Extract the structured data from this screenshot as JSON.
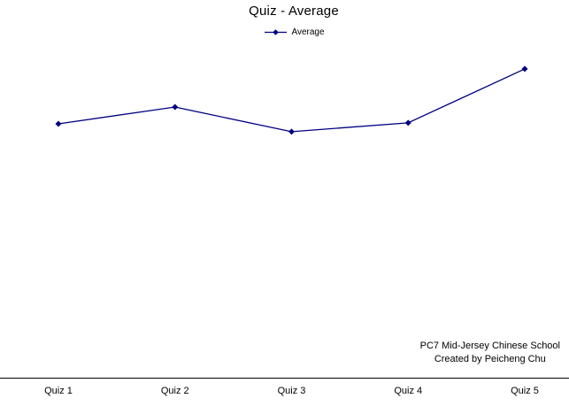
{
  "title": "Quiz - Average",
  "legend": {
    "label": "Average"
  },
  "credit": {
    "line1": "PC7 Mid-Jersey Chinese School",
    "line2": "Created by Peicheng Chu"
  },
  "colors": {
    "series": "#000080",
    "axis": "#000000",
    "text": "#000000",
    "background": "#ffffff"
  },
  "chart_data": {
    "type": "line",
    "title": "Quiz - Average",
    "categories": [
      "Quiz 1",
      "Quiz 2",
      "Quiz 3",
      "Quiz 4",
      "Quiz 5"
    ],
    "series": [
      {
        "name": "Average",
        "marker": "diamond",
        "color": "#000080",
        "values": [
          77.4,
          82.5,
          75.0,
          77.7,
          94.1
        ]
      }
    ],
    "xlabel": "",
    "ylabel": "",
    "ylim": [
      0,
      100
    ],
    "y_axis_visible": false,
    "gridlines": false,
    "legend_position": "top-center"
  }
}
